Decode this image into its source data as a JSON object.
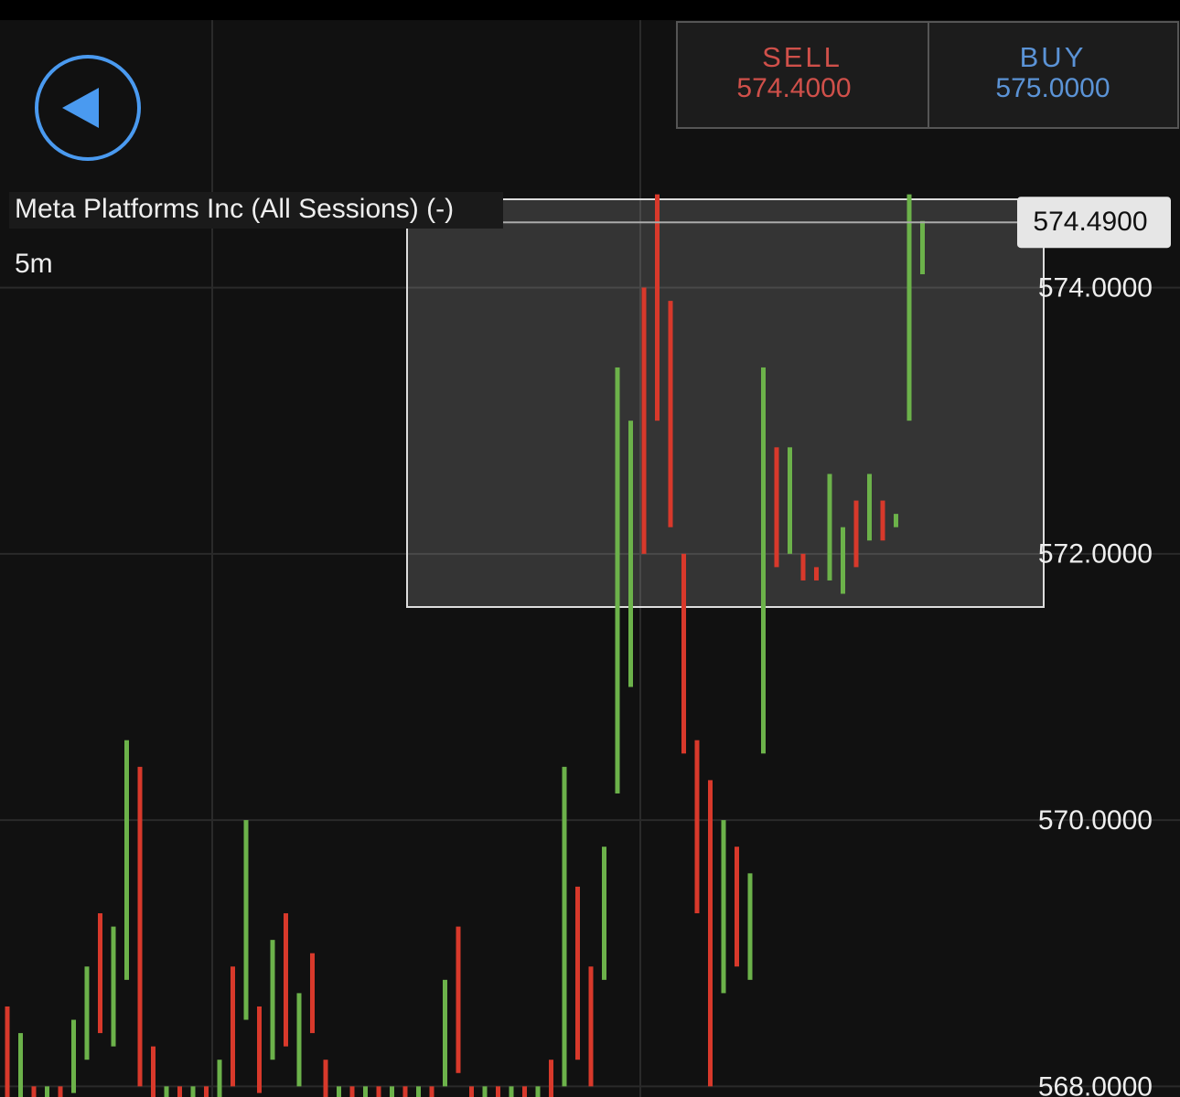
{
  "header": {
    "title": "Meta Platforms Inc (All Sessions) (-)",
    "interval": "5m"
  },
  "trade": {
    "sell_label": "SELL",
    "sell_price": "574.4000",
    "buy_label": "BUY",
    "buy_price": "575.0000"
  },
  "chart_data": {
    "type": "candlestick",
    "ylim": [
      567.92,
      576.16
    ],
    "yticks": [
      {
        "value": 568,
        "label": "568.0000"
      },
      {
        "value": 570,
        "label": "570.0000"
      },
      {
        "value": 572,
        "label": "572.0000"
      },
      {
        "value": 574,
        "label": "574.0000"
      }
    ],
    "grid": true,
    "last_price": {
      "value": 574.49,
      "label": "574.4900"
    },
    "high": [
      568.6,
      568.4,
      568.0,
      568.0,
      568.0,
      568.5,
      568.9,
      569.3,
      569.2,
      570.6,
      570.4,
      568.3,
      568.0,
      568.0,
      568.0,
      568.0,
      568.2,
      568.9,
      570.0,
      568.6,
      569.1,
      569.3,
      568.7,
      569.0,
      568.2,
      568.0,
      568.0,
      568.0,
      568.0,
      568.0,
      568.0,
      568.0,
      568.0,
      568.8,
      569.2,
      568.0,
      568.0,
      568.0,
      568.0,
      568.0,
      568.0,
      568.2,
      570.4,
      569.5,
      568.9,
      569.8,
      573.4,
      573.0,
      574.0,
      574.7,
      573.9,
      572.0,
      570.6,
      570.3,
      570.0,
      569.8,
      569.6,
      573.4,
      572.8,
      572.8,
      572.0,
      571.9,
      572.6,
      572.2,
      572.4,
      572.6,
      572.4,
      572.3,
      574.7,
      574.5
    ],
    "low": [
      567.9,
      567.9,
      567.92,
      567.92,
      567.92,
      567.95,
      568.2,
      568.4,
      568.3,
      568.8,
      568.0,
      567.92,
      567.92,
      567.92,
      567.92,
      567.92,
      567.92,
      568.0,
      568.5,
      567.95,
      568.2,
      568.3,
      568.0,
      568.4,
      567.92,
      567.92,
      567.92,
      567.92,
      567.92,
      567.92,
      567.92,
      567.92,
      567.92,
      568.0,
      568.1,
      567.92,
      567.92,
      567.92,
      567.92,
      567.92,
      567.92,
      567.92,
      568.0,
      568.2,
      568.0,
      568.8,
      570.2,
      571.0,
      572.0,
      573.0,
      572.2,
      570.5,
      569.3,
      568.0,
      568.7,
      568.9,
      568.8,
      570.5,
      571.9,
      572.0,
      571.8,
      571.8,
      571.8,
      571.7,
      571.9,
      572.1,
      572.1,
      572.2,
      573.0,
      574.1
    ],
    "colors": [
      "#d8392b",
      "#6cb24a",
      "#d8392b",
      "#6cb24a",
      "#d8392b",
      "#6cb24a",
      "#6cb24a",
      "#d8392b",
      "#6cb24a",
      "#6cb24a",
      "#d8392b",
      "#d8392b",
      "#6cb24a",
      "#d8392b",
      "#6cb24a",
      "#d8392b",
      "#6cb24a",
      "#d8392b",
      "#6cb24a",
      "#d8392b",
      "#6cb24a",
      "#d8392b",
      "#6cb24a",
      "#d8392b",
      "#d8392b",
      "#6cb24a",
      "#d8392b",
      "#6cb24a",
      "#d8392b",
      "#6cb24a",
      "#d8392b",
      "#6cb24a",
      "#d8392b",
      "#6cb24a",
      "#d8392b",
      "#d8392b",
      "#6cb24a",
      "#d8392b",
      "#6cb24a",
      "#d8392b",
      "#6cb24a",
      "#d8392b",
      "#6cb24a",
      "#d8392b",
      "#d8392b",
      "#6cb24a",
      "#6cb24a",
      "#6cb24a",
      "#d8392b",
      "#d8392b",
      "#d8392b",
      "#d8392b",
      "#d8392b",
      "#d8392b",
      "#6cb24a",
      "#d8392b",
      "#6cb24a",
      "#6cb24a",
      "#d8392b",
      "#6cb24a",
      "#d8392b",
      "#d8392b",
      "#6cb24a",
      "#6cb24a",
      "#d8392b",
      "#6cb24a",
      "#d8392b",
      "#6cb24a",
      "#6cb24a",
      "#6cb24a"
    ]
  }
}
